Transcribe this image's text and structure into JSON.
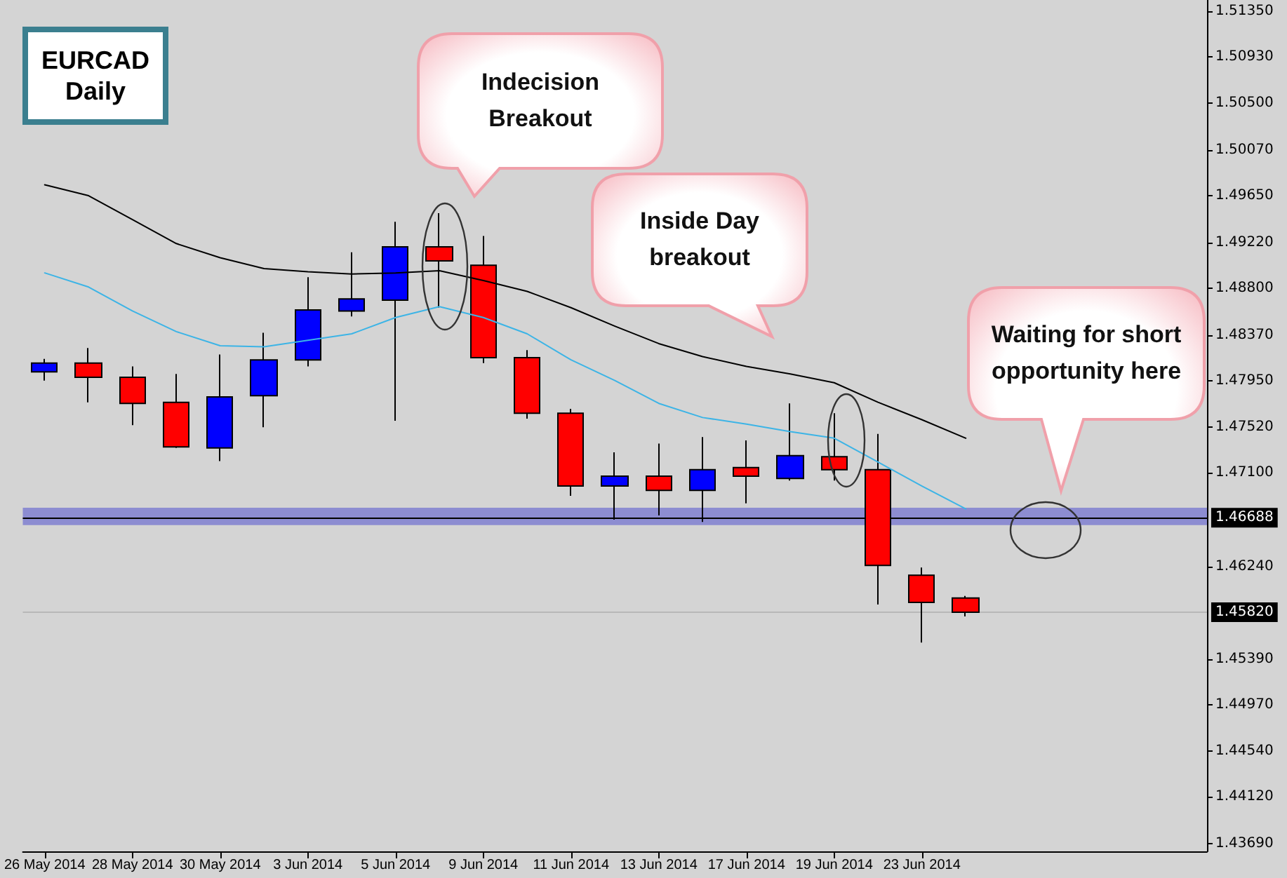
{
  "chart_data": {
    "type": "candlestick",
    "title": "EURCAD Daily",
    "categories": [
      "26 May 2014",
      null,
      "28 May 2014",
      null,
      "30 May 2014",
      null,
      "3 Jun 2014",
      null,
      "5 Jun 2014",
      null,
      "9 Jun 2014",
      null,
      "11 Jun 2014",
      null,
      "13 Jun 2014",
      null,
      "17 Jun 2014",
      null,
      "19 Jun 2014",
      null,
      "23 Jun 2014",
      null,
      null,
      null,
      null,
      null,
      null
    ],
    "ohlc": [
      [
        1.4803,
        1.4815,
        1.4795,
        1.4811
      ],
      [
        1.4811,
        1.4825,
        1.4775,
        1.4798
      ],
      [
        1.4798,
        1.4808,
        1.4754,
        1.4774
      ],
      [
        1.4775,
        1.4801,
        1.4733,
        1.4734
      ],
      [
        1.4733,
        1.4819,
        1.4721,
        1.478
      ],
      [
        1.4781,
        1.4839,
        1.4752,
        1.4814
      ],
      [
        1.4814,
        1.489,
        1.4808,
        1.486
      ],
      [
        1.4859,
        1.4913,
        1.4854,
        1.487
      ],
      [
        1.4869,
        1.4941,
        1.4758,
        1.4918
      ],
      [
        1.4918,
        1.4949,
        1.4862,
        1.4905
      ],
      [
        1.4901,
        1.4928,
        1.4811,
        1.4816
      ],
      [
        1.4816,
        1.4823,
        1.476,
        1.4765
      ],
      [
        1.4765,
        1.4769,
        1.4689,
        1.4698
      ],
      [
        1.4698,
        1.4729,
        1.4667,
        1.4707
      ],
      [
        1.4707,
        1.4737,
        1.4671,
        1.4694
      ],
      [
        1.4694,
        1.4743,
        1.4665,
        1.4713
      ],
      [
        1.4715,
        1.474,
        1.4682,
        1.4707
      ],
      [
        1.4705,
        1.4774,
        1.4703,
        1.4726
      ],
      [
        1.4725,
        1.4765,
        1.4703,
        1.4713
      ],
      [
        1.4713,
        1.4746,
        1.4589,
        1.4625
      ],
      [
        1.4616,
        1.4623,
        1.4554,
        1.4591
      ],
      [
        1.4595,
        1.4597,
        1.4578,
        1.4582
      ],
      null,
      null,
      null,
      null,
      null
    ],
    "colors": [
      "#0000ff",
      "#ff0000",
      "#ff0000",
      "#ff0000",
      "#0000ff",
      "#0000ff",
      "#0000ff",
      "#0000ff",
      "#0000ff",
      "#ff0000",
      "#ff0000",
      "#ff0000",
      "#ff0000",
      "#0000ff",
      "#ff0000",
      "#0000ff",
      "#ff0000",
      "#0000ff",
      "#ff0000",
      "#ff0000",
      "#ff0000",
      "#ff0000",
      null,
      null,
      null,
      null,
      null
    ],
    "series": [
      {
        "type": "line",
        "color": "#000000",
        "values": [
          1.4975,
          1.4965,
          1.4943,
          1.4921,
          1.4908,
          1.4898,
          1.4895,
          1.4893,
          1.4894,
          1.4896,
          1.4887,
          1.4877,
          1.4862,
          1.4845,
          1.4829,
          1.4817,
          1.4808,
          1.4801,
          1.4793,
          1.4775,
          1.4759,
          1.4742,
          null,
          null,
          null,
          null,
          null
        ]
      },
      {
        "type": "line",
        "color": "#3cb4e6",
        "values": [
          1.4894,
          1.4881,
          1.4859,
          1.484,
          1.4827,
          1.4826,
          1.4832,
          1.4838,
          1.4853,
          1.4863,
          1.4853,
          1.4838,
          1.4814,
          1.4795,
          1.4774,
          1.4761,
          1.4755,
          1.4748,
          1.4742,
          1.472,
          1.4698,
          1.4677,
          null,
          null,
          null,
          null,
          null
        ]
      }
    ],
    "ylim": [
      1.4362,
      1.5145
    ],
    "yticks": [
      {
        "value": 1.4369,
        "label": "1.43690"
      },
      {
        "value": 1.4412,
        "label": "1.44120"
      },
      {
        "value": 1.4454,
        "label": "1.44540"
      },
      {
        "value": 1.4497,
        "label": "1.44970"
      },
      {
        "value": 1.4539,
        "label": "1.45390"
      },
      {
        "value": 1.4624,
        "label": "1.46240"
      },
      {
        "value": 1.471,
        "label": "1.47100"
      },
      {
        "value": 1.4752,
        "label": "1.47520"
      },
      {
        "value": 1.4795,
        "label": "1.47950"
      },
      {
        "value": 1.4837,
        "label": "1.48370"
      },
      {
        "value": 1.488,
        "label": "1.48800"
      },
      {
        "value": 1.4922,
        "label": "1.49220"
      },
      {
        "value": 1.4965,
        "label": "1.49650"
      },
      {
        "value": 1.5007,
        "label": "1.50070"
      },
      {
        "value": 1.505,
        "label": "1.50500"
      },
      {
        "value": 1.5093,
        "label": "1.50930"
      },
      {
        "value": 1.5135,
        "label": "1.51350"
      }
    ],
    "ref_lines": [
      {
        "axis": "y",
        "value": 1.46688,
        "label": "1.46688",
        "color": "#000000"
      },
      {
        "axis": "y",
        "value": 1.4582,
        "label": "1.45820",
        "color": "#b8b8b8"
      }
    ],
    "bands": [
      {
        "axis": "y",
        "from": 1.4662,
        "to": 1.4678,
        "color": "#8080d0"
      }
    ],
    "annotations": [
      "Indecision Breakout",
      "Inside Day breakout",
      "Waiting for short opportunity here"
    ],
    "marker": "none",
    "line_style": "solid",
    "grid": false
  }
}
